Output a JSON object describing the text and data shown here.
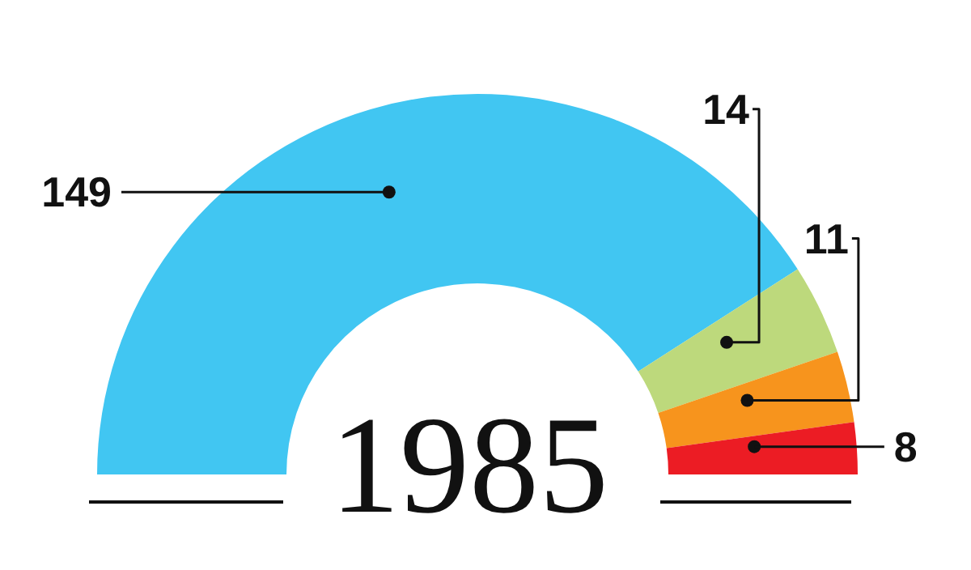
{
  "chart_data": {
    "type": "donut",
    "title": "1985",
    "categories": [
      null,
      null,
      null,
      null
    ],
    "values": [
      149,
      14,
      11,
      8
    ],
    "colors": [
      "#41c6f2",
      "#bdd97c",
      "#f7941d",
      "#ec1c24"
    ],
    "data_labels": true
  }
}
